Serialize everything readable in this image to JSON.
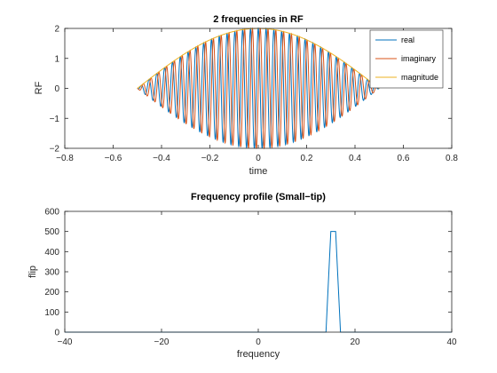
{
  "colors": {
    "real": "#0072bd",
    "imaginary": "#d95319",
    "magnitude": "#edb120",
    "axis": "#262626"
  },
  "chart_data": [
    {
      "type": "line",
      "title": "2 frequencies in RF",
      "xlabel": "time",
      "ylabel": "RF",
      "xlim": [
        -0.8,
        0.8
      ],
      "ylim": [
        -2,
        2
      ],
      "xticks": [
        -0.8,
        -0.6,
        -0.4,
        -0.2,
        0,
        0.2,
        0.4,
        0.6,
        0.8
      ],
      "xtick_labels": [
        "−0.8",
        "−0.6",
        "−0.4",
        "−0.2",
        "0",
        "0.2",
        "0.4",
        "0.6",
        "0.8"
      ],
      "yticks": [
        -2,
        -1,
        0,
        1,
        2
      ],
      "ytick_labels": [
        "−2",
        "−1",
        "0",
        "1",
        "2"
      ],
      "legend_position": "top-right",
      "series": [
        {
          "name": "real",
          "t_range": [
            -0.5,
            0.5
          ],
          "oscillation_cycles": 31,
          "phase": "cos"
        },
        {
          "name": "imaginary",
          "t_range": [
            -0.5,
            0.5
          ],
          "oscillation_cycles": 31,
          "phase": "sin"
        },
        {
          "name": "magnitude",
          "t_range": [
            -0.5,
            0.5
          ],
          "peak": 2,
          "shape": "cosine envelope"
        }
      ]
    },
    {
      "type": "line",
      "title": "Frequency profile (Small−tip)",
      "xlabel": "frequency",
      "ylabel": "flip",
      "xlim": [
        -40,
        40
      ],
      "ylim": [
        0,
        600
      ],
      "xticks": [
        -40,
        -20,
        0,
        20,
        40
      ],
      "xtick_labels": [
        "−40",
        "−20",
        "0",
        "20",
        "40"
      ],
      "yticks": [
        0,
        100,
        200,
        300,
        400,
        500,
        600
      ],
      "ytick_labels": [
        "0",
        "100",
        "200",
        "300",
        "400",
        "500",
        "600"
      ],
      "series": [
        {
          "name": "flip",
          "x": [
            -40,
            14,
            15,
            16,
            17,
            40
          ],
          "y": [
            0,
            0,
            500,
            500,
            0,
            0
          ]
        }
      ]
    }
  ]
}
